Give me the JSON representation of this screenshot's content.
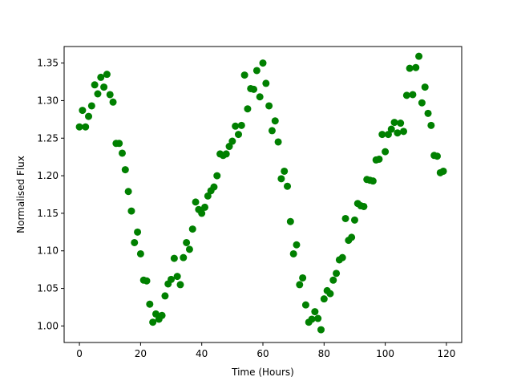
{
  "chart_data": {
    "type": "scatter",
    "title": "",
    "xlabel": "Time (Hours)",
    "ylabel": "Normalised Flux",
    "xlim": [
      -5,
      125
    ],
    "ylim": [
      0.978,
      1.372
    ],
    "xticks": [
      0,
      20,
      40,
      60,
      80,
      100,
      120
    ],
    "xtick_labels": [
      "0",
      "20",
      "40",
      "60",
      "80",
      "100",
      "120"
    ],
    "yticks": [
      1.0,
      1.05,
      1.1,
      1.15,
      1.2,
      1.25,
      1.3,
      1.35
    ],
    "ytick_labels": [
      "1.00",
      "1.05",
      "1.10",
      "1.15",
      "1.20",
      "1.25",
      "1.30",
      "1.35"
    ],
    "grid": false,
    "marker_color": "#008000",
    "series": [
      {
        "x": [
          0,
          1,
          2,
          3,
          4,
          5,
          6,
          7,
          8,
          9,
          10,
          11,
          12,
          13,
          14,
          15,
          16,
          17,
          18,
          19,
          20,
          21,
          22,
          23,
          24,
          25,
          26,
          27,
          28,
          29,
          30,
          31,
          32,
          33,
          34,
          35,
          36,
          37,
          38,
          39,
          40,
          41,
          42,
          43,
          44,
          45,
          46,
          47,
          48,
          49,
          50,
          51,
          52,
          53,
          54,
          55,
          56,
          57,
          58,
          59,
          60,
          61,
          62,
          63,
          64,
          65,
          66,
          67,
          68,
          69,
          70,
          71,
          72,
          73,
          74,
          75,
          76,
          77,
          78,
          79,
          80,
          81,
          82,
          83,
          84,
          85,
          86,
          87,
          88,
          89,
          90,
          91,
          92,
          93,
          94,
          95,
          96,
          97,
          98,
          99,
          100,
          101,
          102,
          103,
          104,
          105,
          106,
          107,
          108,
          109,
          110,
          111,
          112,
          113,
          114,
          115,
          116,
          117,
          118,
          119
        ],
        "y": [
          1.265,
          1.287,
          1.265,
          1.279,
          1.293,
          1.321,
          1.309,
          1.331,
          1.318,
          1.335,
          1.308,
          1.298,
          1.243,
          1.243,
          1.23,
          1.208,
          1.179,
          1.153,
          1.111,
          1.125,
          1.096,
          1.061,
          1.06,
          1.029,
          1.005,
          1.016,
          1.009,
          1.014,
          1.04,
          1.056,
          1.062,
          1.09,
          1.066,
          1.055,
          1.091,
          1.111,
          1.102,
          1.129,
          1.165,
          1.155,
          1.15,
          1.158,
          1.173,
          1.18,
          1.185,
          1.2,
          1.229,
          1.227,
          1.229,
          1.239,
          1.246,
          1.266,
          1.255,
          1.267,
          1.334,
          1.289,
          1.316,
          1.315,
          1.34,
          1.305,
          1.35,
          1.323,
          1.293,
          1.26,
          1.273,
          1.245,
          1.196,
          1.206,
          1.186,
          1.139,
          1.096,
          1.108,
          1.055,
          1.064,
          1.028,
          1.005,
          1.009,
          1.019,
          1.01,
          0.995,
          1.036,
          1.047,
          1.043,
          1.061,
          1.07,
          1.088,
          1.091,
          1.143,
          1.114,
          1.118,
          1.141,
          1.163,
          1.16,
          1.159,
          1.195,
          1.194,
          1.193,
          1.221,
          1.222,
          1.255,
          1.232,
          1.255,
          1.262,
          1.271,
          1.257,
          1.27,
          1.259,
          1.307,
          1.343,
          1.308,
          1.344,
          1.359,
          1.297,
          1.318,
          1.283,
          1.267,
          1.227,
          1.226,
          1.204,
          1.206
        ]
      }
    ]
  }
}
